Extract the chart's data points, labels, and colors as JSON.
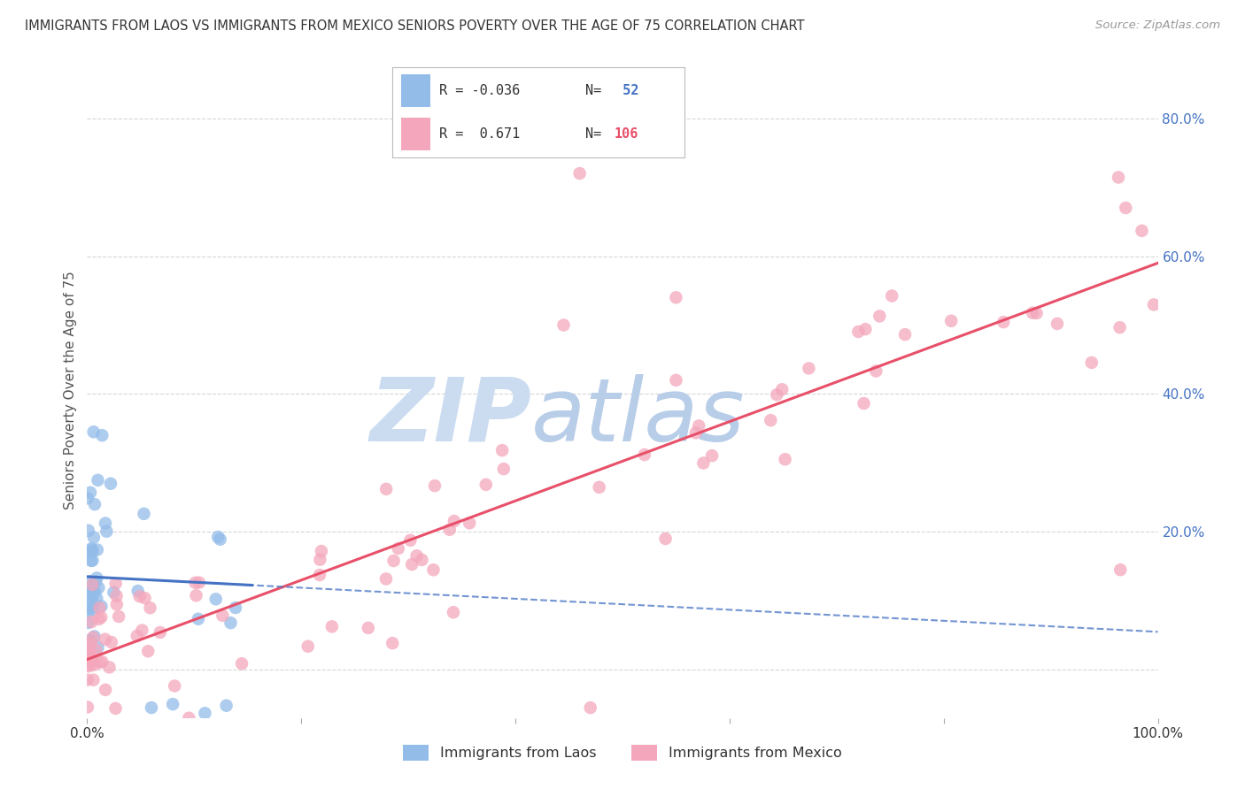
{
  "title": "IMMIGRANTS FROM LAOS VS IMMIGRANTS FROM MEXICO SENIORS POVERTY OVER THE AGE OF 75 CORRELATION CHART",
  "source": "Source: ZipAtlas.com",
  "ylabel": "Seniors Poverty Over the Age of 75",
  "xlabel": "",
  "laos_R": -0.036,
  "laos_N": 52,
  "mexico_R": 0.671,
  "mexico_N": 106,
  "laos_color": "#93bce9",
  "mexico_color": "#f4a7bc",
  "laos_line_color": "#4472c4",
  "mexico_line_color": "#e8506a",
  "background_color": "#ffffff",
  "grid_color": "#cccccc",
  "watermark_zip_color": "#ccdcf0",
  "watermark_atlas_color": "#b8cde8",
  "xlim": [
    0.0,
    1.0
  ],
  "ylim": [
    -0.07,
    0.88
  ],
  "title_color": "#333333",
  "axis_label_color": "#555555",
  "right_tick_color": "#4472c4",
  "tick_label_color": "#333333"
}
